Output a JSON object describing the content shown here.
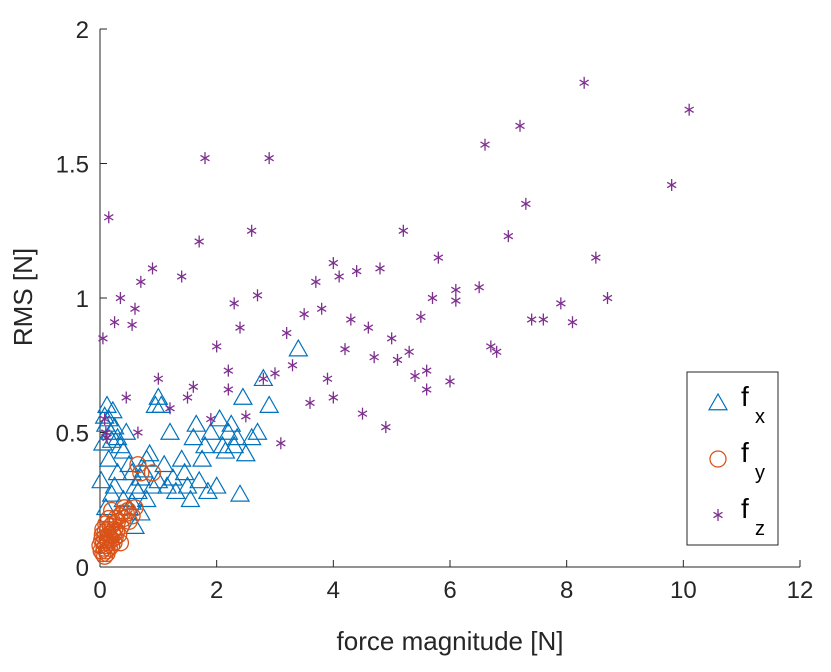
{
  "chart_data": {
    "type": "scatter",
    "title": "",
    "xlabel": "force magnitude [N]",
    "ylabel": "RMS [N]",
    "xlim": [
      0,
      12
    ],
    "ylim": [
      0,
      2
    ],
    "xticks": [
      0,
      2,
      4,
      6,
      8,
      10,
      12
    ],
    "yticks": [
      0,
      0.5,
      1,
      1.5,
      2
    ],
    "xtick_labels": [
      "0",
      "2",
      "4",
      "6",
      "8",
      "10",
      "12"
    ],
    "ytick_labels": [
      "0",
      "0.5",
      "1",
      "1.5",
      "2"
    ],
    "grid": false,
    "legend_position": "bottom-right",
    "series": [
      {
        "name": "f_x",
        "label_base": "f",
        "label_sub": "x",
        "marker": "triangle",
        "color": "#0072BD",
        "points": [
          [
            0.02,
            0.32
          ],
          [
            0.05,
            0.46
          ],
          [
            0.08,
            0.56
          ],
          [
            0.1,
            0.53
          ],
          [
            0.12,
            0.6
          ],
          [
            0.15,
            0.55
          ],
          [
            0.18,
            0.5
          ],
          [
            0.2,
            0.47
          ],
          [
            0.22,
            0.58
          ],
          [
            0.25,
            0.52
          ],
          [
            0.3,
            0.48
          ],
          [
            0.35,
            0.45
          ],
          [
            0.4,
            0.43
          ],
          [
            0.45,
            0.5
          ],
          [
            0.5,
            0.38
          ],
          [
            0.55,
            0.35
          ],
          [
            0.6,
            0.3
          ],
          [
            0.65,
            0.28
          ],
          [
            0.7,
            0.33
          ],
          [
            0.75,
            0.36
          ],
          [
            0.8,
            0.4
          ],
          [
            0.85,
            0.42
          ],
          [
            0.9,
            0.3
          ],
          [
            0.95,
            0.6
          ],
          [
            1.0,
            0.63
          ],
          [
            1.05,
            0.6
          ],
          [
            1.1,
            0.38
          ],
          [
            1.15,
            0.3
          ],
          [
            1.2,
            0.5
          ],
          [
            1.25,
            0.33
          ],
          [
            1.3,
            0.28
          ],
          [
            1.4,
            0.4
          ],
          [
            1.45,
            0.35
          ],
          [
            1.5,
            0.3
          ],
          [
            1.55,
            0.25
          ],
          [
            1.6,
            0.48
          ],
          [
            1.65,
            0.53
          ],
          [
            1.7,
            0.32
          ],
          [
            1.75,
            0.4
          ],
          [
            1.8,
            0.45
          ],
          [
            1.85,
            0.28
          ],
          [
            1.9,
            0.5
          ],
          [
            2.0,
            0.3
          ],
          [
            2.05,
            0.55
          ],
          [
            2.1,
            0.45
          ],
          [
            2.15,
            0.43
          ],
          [
            2.2,
            0.5
          ],
          [
            2.25,
            0.53
          ],
          [
            2.3,
            0.45
          ],
          [
            2.35,
            0.48
          ],
          [
            2.4,
            0.27
          ],
          [
            2.45,
            0.63
          ],
          [
            2.5,
            0.42
          ],
          [
            2.6,
            0.48
          ],
          [
            2.7,
            0.5
          ],
          [
            2.8,
            0.7
          ],
          [
            2.9,
            0.6
          ],
          [
            3.4,
            0.81
          ],
          [
            0.3,
            0.35
          ],
          [
            0.4,
            0.25
          ],
          [
            0.5,
            0.22
          ],
          [
            0.6,
            0.15
          ],
          [
            0.7,
            0.2
          ],
          [
            0.8,
            0.25
          ],
          [
            1.0,
            0.32
          ],
          [
            0.2,
            0.27
          ],
          [
            0.1,
            0.22
          ],
          [
            0.15,
            0.4
          ],
          [
            0.25,
            0.3
          ],
          [
            0.55,
            0.24
          ]
        ]
      },
      {
        "name": "f_y",
        "label_base": "f",
        "label_sub": "y",
        "marker": "circle",
        "color": "#D95319",
        "points": [
          [
            0.0,
            0.08
          ],
          [
            0.02,
            0.06
          ],
          [
            0.03,
            0.1
          ],
          [
            0.04,
            0.12
          ],
          [
            0.05,
            0.05
          ],
          [
            0.06,
            0.09
          ],
          [
            0.07,
            0.07
          ],
          [
            0.08,
            0.11
          ],
          [
            0.09,
            0.13
          ],
          [
            0.1,
            0.08
          ],
          [
            0.11,
            0.06
          ],
          [
            0.12,
            0.1
          ],
          [
            0.13,
            0.14
          ],
          [
            0.14,
            0.09
          ],
          [
            0.15,
            0.12
          ],
          [
            0.16,
            0.07
          ],
          [
            0.17,
            0.11
          ],
          [
            0.18,
            0.15
          ],
          [
            0.19,
            0.1
          ],
          [
            0.2,
            0.08
          ],
          [
            0.21,
            0.13
          ],
          [
            0.22,
            0.16
          ],
          [
            0.23,
            0.12
          ],
          [
            0.24,
            0.09
          ],
          [
            0.25,
            0.14
          ],
          [
            0.26,
            0.11
          ],
          [
            0.27,
            0.18
          ],
          [
            0.28,
            0.13
          ],
          [
            0.3,
            0.17
          ],
          [
            0.32,
            0.12
          ],
          [
            0.34,
            0.19
          ],
          [
            0.36,
            0.15
          ],
          [
            0.38,
            0.2
          ],
          [
            0.4,
            0.18
          ],
          [
            0.42,
            0.22
          ],
          [
            0.45,
            0.2
          ],
          [
            0.48,
            0.21
          ],
          [
            0.5,
            0.17
          ],
          [
            0.55,
            0.19
          ],
          [
            0.6,
            0.22
          ],
          [
            0.65,
            0.38
          ],
          [
            0.7,
            0.35
          ],
          [
            0.9,
            0.35
          ],
          [
            0.05,
            0.14
          ],
          [
            0.08,
            0.04
          ],
          [
            0.12,
            0.05
          ],
          [
            0.15,
            0.18
          ],
          [
            0.2,
            0.21
          ],
          [
            0.1,
            0.16
          ],
          [
            0.35,
            0.09
          ]
        ]
      },
      {
        "name": "f_z",
        "label_base": "f",
        "label_sub": "z",
        "marker": "asterisk",
        "color": "#7E2F8E",
        "points": [
          [
            0.05,
            0.85
          ],
          [
            0.08,
            0.55
          ],
          [
            0.1,
            0.5
          ],
          [
            0.12,
            0.48
          ],
          [
            0.15,
            1.3
          ],
          [
            0.25,
            0.91
          ],
          [
            0.35,
            1.0
          ],
          [
            0.45,
            0.63
          ],
          [
            0.55,
            0.9
          ],
          [
            0.6,
            0.96
          ],
          [
            0.65,
            0.5
          ],
          [
            0.7,
            1.06
          ],
          [
            0.9,
            1.11
          ],
          [
            1.0,
            0.7
          ],
          [
            1.2,
            0.59
          ],
          [
            1.4,
            1.08
          ],
          [
            1.5,
            0.63
          ],
          [
            1.6,
            0.67
          ],
          [
            1.7,
            1.21
          ],
          [
            1.8,
            1.52
          ],
          [
            1.9,
            0.55
          ],
          [
            2.0,
            0.82
          ],
          [
            2.2,
            0.73
          ],
          [
            2.3,
            0.98
          ],
          [
            2.4,
            0.89
          ],
          [
            2.5,
            0.56
          ],
          [
            2.6,
            1.25
          ],
          [
            2.7,
            1.01
          ],
          [
            2.8,
            0.7
          ],
          [
            2.9,
            1.52
          ],
          [
            3.1,
            0.46
          ],
          [
            3.2,
            0.87
          ],
          [
            3.3,
            0.75
          ],
          [
            3.5,
            0.94
          ],
          [
            3.6,
            0.61
          ],
          [
            3.7,
            1.06
          ],
          [
            3.8,
            0.96
          ],
          [
            3.9,
            0.7
          ],
          [
            4.0,
            1.13
          ],
          [
            4.1,
            1.08
          ],
          [
            4.2,
            0.81
          ],
          [
            4.3,
            0.92
          ],
          [
            4.4,
            1.1
          ],
          [
            4.5,
            0.57
          ],
          [
            4.6,
            0.89
          ],
          [
            4.7,
            0.78
          ],
          [
            4.8,
            1.11
          ],
          [
            4.9,
            0.52
          ],
          [
            5.0,
            0.85
          ],
          [
            5.1,
            0.77
          ],
          [
            5.2,
            1.25
          ],
          [
            5.3,
            0.8
          ],
          [
            5.4,
            0.71
          ],
          [
            5.5,
            0.93
          ],
          [
            5.6,
            0.66
          ],
          [
            5.7,
            1.0
          ],
          [
            5.8,
            1.15
          ],
          [
            6.0,
            0.69
          ],
          [
            6.1,
            1.03
          ],
          [
            6.5,
            1.04
          ],
          [
            6.6,
            1.57
          ],
          [
            6.7,
            0.82
          ],
          [
            6.8,
            0.8
          ],
          [
            7.0,
            1.23
          ],
          [
            7.2,
            1.64
          ],
          [
            7.3,
            1.35
          ],
          [
            7.4,
            0.92
          ],
          [
            7.6,
            0.92
          ],
          [
            7.9,
            0.98
          ],
          [
            8.1,
            0.91
          ],
          [
            8.3,
            1.8
          ],
          [
            8.5,
            1.15
          ],
          [
            8.7,
            1.0
          ],
          [
            9.8,
            1.42
          ],
          [
            10.1,
            1.7
          ],
          [
            4.0,
            0.63
          ],
          [
            3.0,
            0.72
          ],
          [
            5.6,
            0.73
          ],
          [
            2.2,
            0.66
          ],
          [
            6.1,
            0.99
          ]
        ]
      }
    ]
  }
}
